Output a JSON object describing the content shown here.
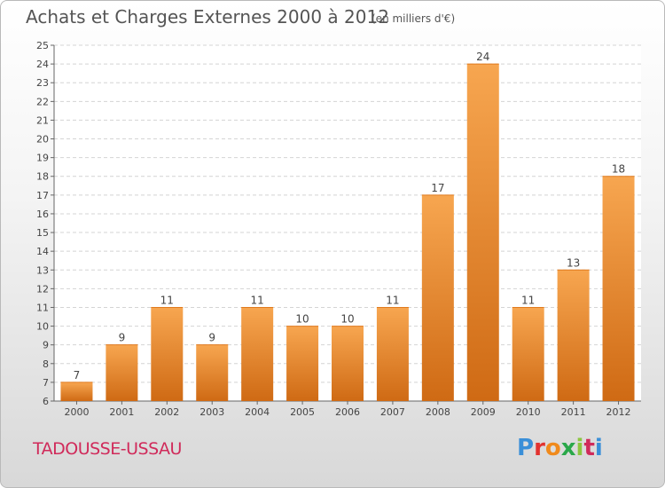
{
  "title": "Achats et Charges Externes 2000 à 2012",
  "unit_note": "(en milliers d'€)",
  "commune": "TADOUSSE-USSAU",
  "logo": {
    "parts": [
      "P",
      "r",
      "o",
      "x",
      "i",
      "t",
      "i"
    ]
  },
  "colors": {
    "bar_top": "#f7a650",
    "bar_bottom": "#cf6a14",
    "title": "#555555",
    "commune": "#d02a5a"
  },
  "chart_data": {
    "type": "bar",
    "title": "Achats et Charges Externes 2000 à 2012",
    "categories": [
      "2000",
      "2001",
      "2002",
      "2003",
      "2004",
      "2005",
      "2006",
      "2007",
      "2008",
      "2009",
      "2010",
      "2011",
      "2012"
    ],
    "values": [
      7,
      9,
      11,
      9,
      11,
      10,
      10,
      11,
      17,
      24,
      11,
      13,
      18
    ],
    "ylim": [
      6,
      25
    ],
    "yticks": [
      6,
      7,
      8,
      9,
      10,
      11,
      12,
      13,
      14,
      15,
      16,
      17,
      18,
      19,
      20,
      21,
      22,
      23,
      24,
      25
    ],
    "grid": true,
    "xlabel": "",
    "ylabel": ""
  }
}
